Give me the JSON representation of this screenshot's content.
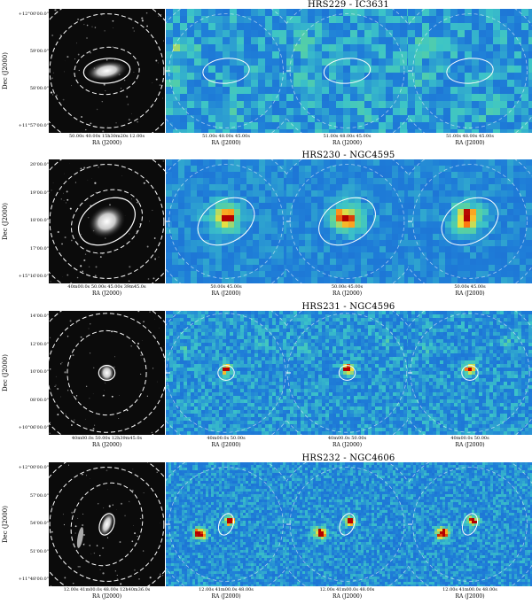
{
  "rows": [
    {
      "title": "HRS229 - IC3631",
      "y_axis_label": "Dec (J2000)",
      "y_ticks": [
        "+12°00'00.0\"",
        "59'00.0\"",
        "58'00.0\"",
        "+11°57'00.0\""
      ],
      "x_ticks_optical": "50.00s 40.00s 15h30m20s 12.00s",
      "x_ticks_maps": [
        "51.00s 48.00s 45.00s",
        "51.00s 48.00s 45.00s",
        "51.00s 48.00s 45.00s"
      ],
      "x_axis_label": "RA (J2000)"
    },
    {
      "title": "HRS230 - NGC4595",
      "y_axis_label": "Dec (J2000)",
      "y_ticks": [
        "20'00.0\"",
        "19'00.0\"",
        "18'00.0\"",
        "17'00.0\"",
        "+15°16'00.0\""
      ],
      "x_ticks_optical": "40m00.0s 50.00s 45.00s 39m45.0s",
      "x_ticks_maps": [
        "50.00s 45.00s",
        "50.00s 45.00s",
        "50.00s 45.00s"
      ],
      "x_axis_label": "RA (J2000)"
    },
    {
      "title": "HRS231 - NGC4596",
      "y_axis_label": "Dec (J2000)",
      "y_ticks": [
        "14'00.0\"",
        "12'00.0\"",
        "10'00.0\"",
        "08'00.0\"",
        "+10°06'00.0\""
      ],
      "x_ticks_optical": "40m00.0s 50.00s 12h39m45.0s",
      "x_ticks_maps": [
        "40m00.0s 50.00s",
        "40m00.0s 50.00s",
        "40m00.0s 50.00s"
      ],
      "x_axis_label": "RA (J2000)"
    },
    {
      "title": "HRS232 - NGC4606",
      "y_axis_label": "Dec (J2000)",
      "y_ticks": [
        "+12°00'00.0\"",
        "57'00.0\"",
        "54'00.0\"",
        "51'00.0\"",
        "+11°48'00.0\""
      ],
      "x_ticks_optical": "12.00s 41m00.0s 48.00s 12h40m36.0s",
      "x_ticks_maps": [
        "12.00s 41m00.0s 48.00s",
        "12.00s 41m00.0s 48.00s",
        "12.00s 41m00.0s 48.00s"
      ],
      "x_axis_label": "RA (J2000)"
    }
  ],
  "colors": {
    "map_low": "#1f7fd8",
    "map_mid": "#5ed39a",
    "map_high": "#f2e03a",
    "map_peak": "#b30000",
    "optical_bg": "#0b0b0b",
    "contour": "#ffffff"
  }
}
